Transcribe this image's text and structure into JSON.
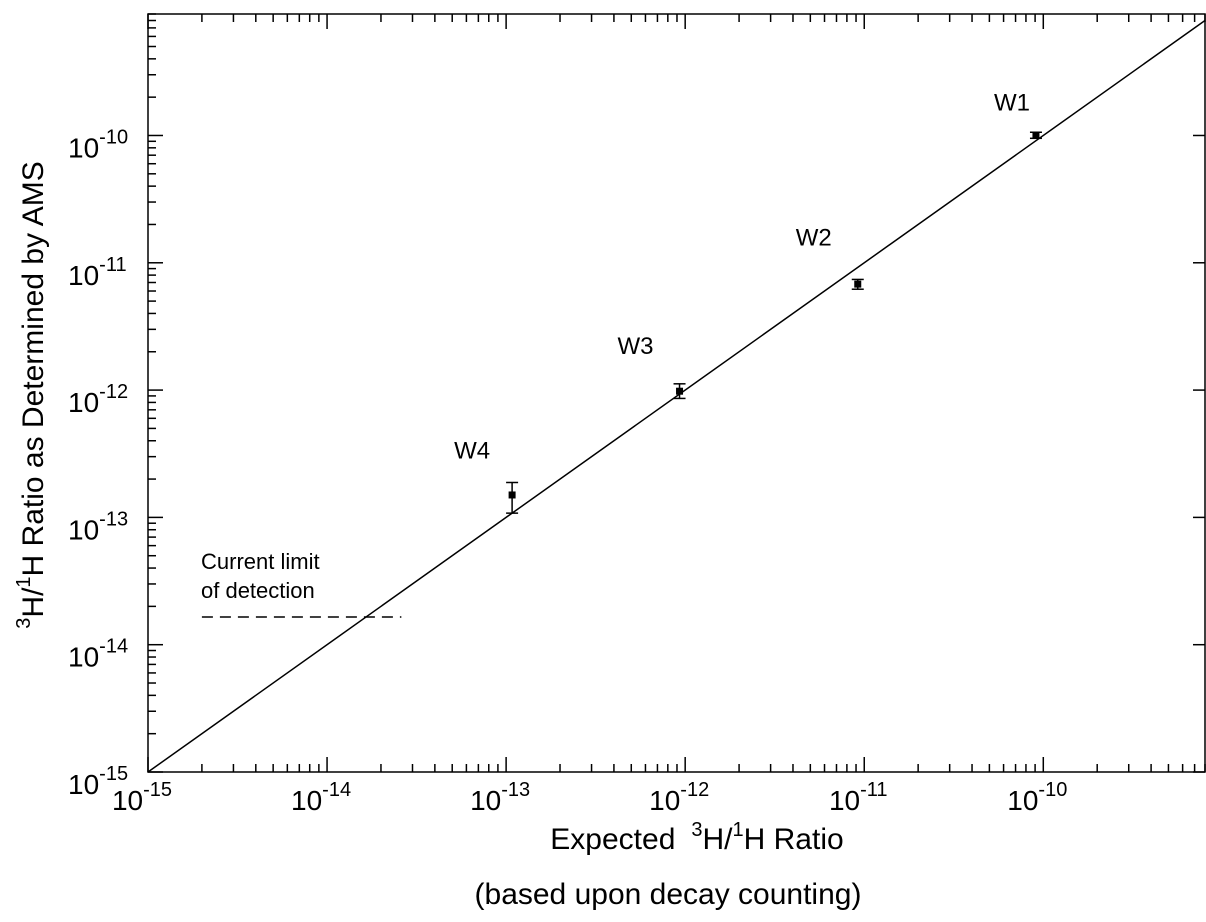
{
  "chart_data": {
    "type": "scatter",
    "title": "",
    "xlabel": {
      "prefix": "Expected",
      "main_sup1": "3",
      "main_b1": "H/",
      "main_sup2": "1",
      "main_b2": "H Ratio"
    },
    "xlabel_line2": "(based upon decay counting)",
    "ylabel": {
      "sup1": "3",
      "b1": "H/",
      "sup2": "1",
      "b2": "H Ratio as Determined by AMS"
    },
    "x_scale": "log",
    "y_scale": "log",
    "xlim": [
      1e-15,
      8e-10
    ],
    "ylim": [
      1e-15,
      9e-10
    ],
    "grid": false,
    "x_ticks": [
      {
        "value": 1e-15,
        "base": "10",
        "exp": "-15"
      },
      {
        "value": 1e-14,
        "base": "10",
        "exp": "-14"
      },
      {
        "value": 1e-13,
        "base": "10",
        "exp": "-13"
      },
      {
        "value": 1e-12,
        "base": "10",
        "exp": "-12"
      },
      {
        "value": 1e-11,
        "base": "10",
        "exp": "-11"
      },
      {
        "value": 1e-10,
        "base": "10",
        "exp": "-10"
      }
    ],
    "y_ticks": [
      {
        "value": 1e-15,
        "base": "10",
        "exp": "-15"
      },
      {
        "value": 1e-14,
        "base": "10",
        "exp": "-14"
      },
      {
        "value": 1e-13,
        "base": "10",
        "exp": "-13"
      },
      {
        "value": 1e-12,
        "base": "10",
        "exp": "-12"
      },
      {
        "value": 1e-11,
        "base": "10",
        "exp": "-11"
      },
      {
        "value": 1e-10,
        "base": "10",
        "exp": "-10"
      }
    ],
    "points": [
      {
        "label": "W1",
        "x": 9.1e-11,
        "y": 1e-10,
        "y_low": 9.5e-11,
        "y_high": 1.06e-10
      },
      {
        "label": "W2",
        "x": 9.2e-12,
        "y": 6.8e-12,
        "y_low": 6.2e-12,
        "y_high": 7.4e-12
      },
      {
        "label": "W3",
        "x": 9.3e-13,
        "y": 9.8e-13,
        "y_low": 8.6e-13,
        "y_high": 1.12e-12
      },
      {
        "label": "W4",
        "x": 1.08e-13,
        "y": 1.5e-13,
        "y_low": 1.08e-13,
        "y_high": 1.88e-13
      }
    ],
    "reference_line": {
      "x": [
        1e-15,
        8e-10
      ],
      "y": [
        1e-15,
        8e-10
      ]
    },
    "detection_limit": {
      "y": 1.65e-14,
      "x_start": 2e-15,
      "x_end": 2.6e-14
    },
    "annotations": {
      "limit_line1": "Current limit",
      "limit_line2": "of detection"
    }
  }
}
